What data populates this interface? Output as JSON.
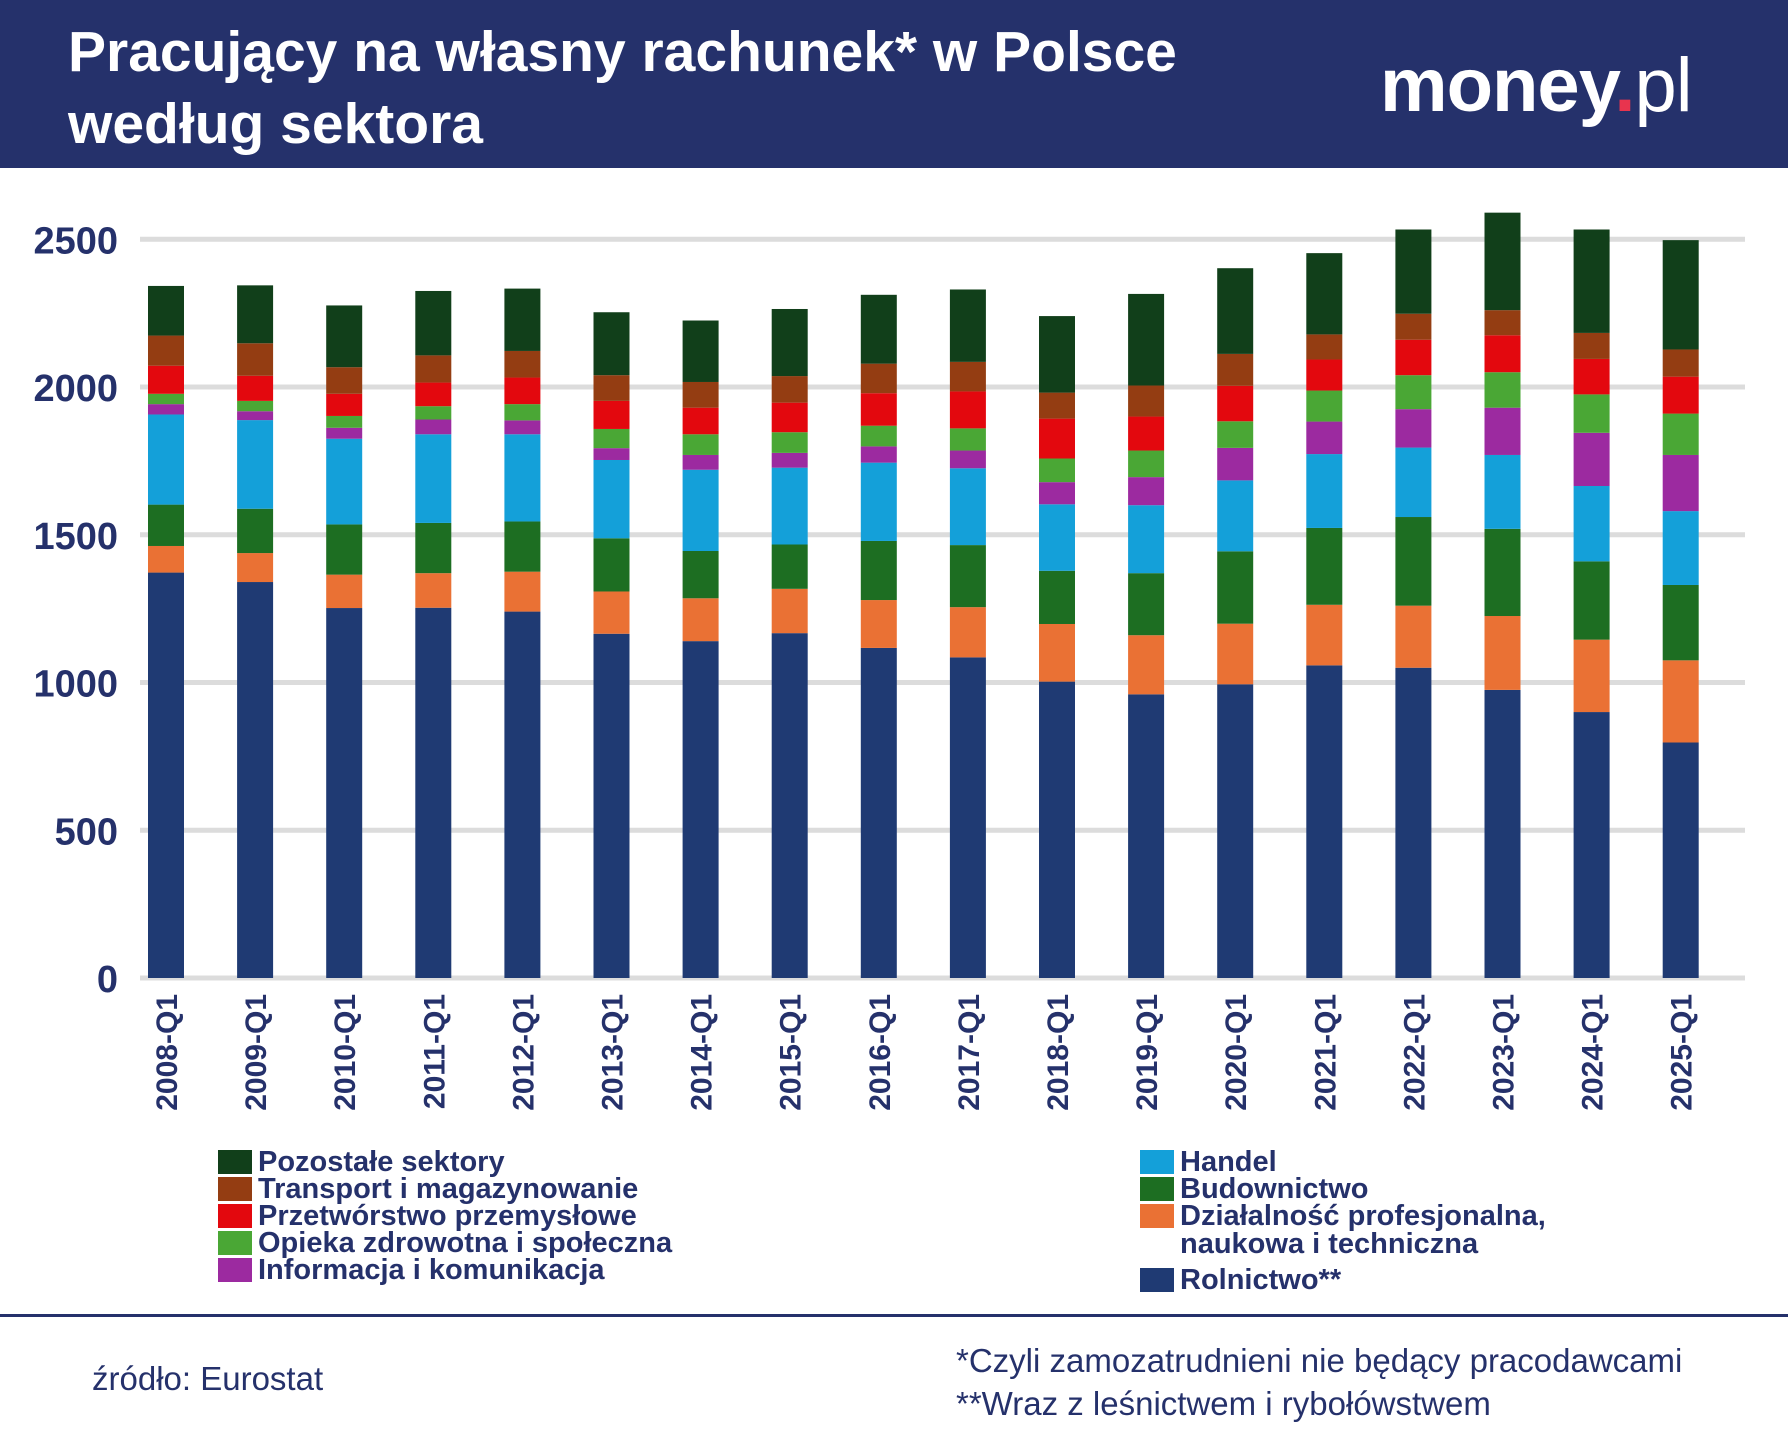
{
  "header": {
    "title": "Pracujący na własny rachunek* w Polsce według sektora",
    "logo": {
      "main": "money",
      "dot": ".",
      "tld": "pl"
    }
  },
  "footer": {
    "source": "źródło: Eurostat",
    "note1": "*Czyli zamozatrudnieni nie będący pracodawcami",
    "note2": "**Wraz z leśnictwem i rybołówstwem"
  },
  "chart_data": {
    "type": "bar",
    "stacked": true,
    "title": "Pracujący na własny rachunek* w Polsce według sektora",
    "xlabel": "",
    "ylabel": "",
    "ylim": [
      0,
      2500
    ],
    "yticks": [
      0,
      500,
      1000,
      1500,
      2000,
      2500
    ],
    "grid": true,
    "categories": [
      "2008-Q1",
      "2009-Q1",
      "2010-Q1",
      "2011-Q1",
      "2012-Q1",
      "2013-Q1",
      "2014-Q1",
      "2015-Q1",
      "2016-Q1",
      "2017-Q1",
      "2018-Q1",
      "2019-Q1",
      "2020-Q1",
      "2021-Q1",
      "2022-Q1",
      "2023-Q1",
      "2024-Q1",
      "2025-Q1"
    ],
    "series": [
      {
        "name": "Rolnictwo**",
        "color": "#1f3a73",
        "values": [
          1372,
          1340,
          1252,
          1253,
          1240,
          1165,
          1140,
          1167,
          1117,
          1085,
          1003,
          960,
          994,
          1058,
          1050,
          975,
          900,
          797
        ]
      },
      {
        "name": "Działalność profesjonalna,\nnaukowa i techniczna",
        "color": "#ea7134",
        "values": [
          90,
          98,
          113,
          117,
          135,
          143,
          145,
          150,
          162,
          170,
          195,
          200,
          205,
          205,
          210,
          250,
          245,
          278
        ]
      },
      {
        "name": "Budownictwo",
        "color": "#1d6e22",
        "values": [
          140,
          150,
          170,
          170,
          170,
          180,
          160,
          150,
          200,
          210,
          180,
          210,
          245,
          260,
          300,
          295,
          265,
          255
        ]
      },
      {
        "name": "Handel",
        "color": "#14a0d9",
        "values": [
          305,
          300,
          290,
          300,
          295,
          265,
          275,
          260,
          265,
          260,
          225,
          230,
          240,
          250,
          235,
          250,
          255,
          250
        ]
      },
      {
        "name": "Informacja i komunikacja",
        "color": "#9c2aa0",
        "values": [
          35,
          30,
          37,
          50,
          47,
          40,
          50,
          50,
          55,
          60,
          75,
          95,
          110,
          110,
          130,
          160,
          180,
          190
        ]
      },
      {
        "name": "Opieka zdrowotna i społeczna",
        "color": "#4aa735",
        "values": [
          35,
          35,
          40,
          45,
          55,
          65,
          70,
          70,
          70,
          75,
          80,
          90,
          90,
          105,
          115,
          120,
          130,
          140
        ]
      },
      {
        "name": "Przetwórstwo przemysłowe",
        "color": "#e3080e",
        "values": [
          95,
          85,
          75,
          80,
          90,
          95,
          90,
          100,
          110,
          125,
          135,
          115,
          120,
          105,
          120,
          125,
          120,
          125
        ]
      },
      {
        "name": "Transport i magazynowanie",
        "color": "#943d12",
        "values": [
          102,
          110,
          90,
          92,
          90,
          87,
          87,
          90,
          100,
          100,
          88,
          105,
          108,
          85,
          88,
          85,
          88,
          92
        ]
      },
      {
        "name": "Pozostałe sektory",
        "color": "#113f1a",
        "values": [
          168,
          196,
          209,
          218,
          211,
          213,
          208,
          227,
          233,
          245,
          259,
          310,
          290,
          275,
          285,
          330,
          350,
          370
        ]
      }
    ]
  },
  "legend": {
    "left": [
      {
        "label": "Pozostałe sektory",
        "color": "#113f1a"
      },
      {
        "label": "Transport i magazynowanie",
        "color": "#943d12"
      },
      {
        "label": "Przetwórstwo przemysłowe",
        "color": "#e3080e"
      },
      {
        "label": "Opieka zdrowotna i społeczna",
        "color": "#4aa735"
      },
      {
        "label": "Informacja i komunikacja",
        "color": "#9c2aa0"
      }
    ],
    "right": [
      {
        "label": "Handel",
        "color": "#14a0d9"
      },
      {
        "label": "Budownictwo",
        "color": "#1d6e22"
      },
      {
        "label": "Działalność profesjonalna,\nnaukowa i techniczna",
        "color": "#ea7134"
      },
      {
        "label": "Rolnictwo**",
        "color": "#1f3a73"
      }
    ]
  }
}
